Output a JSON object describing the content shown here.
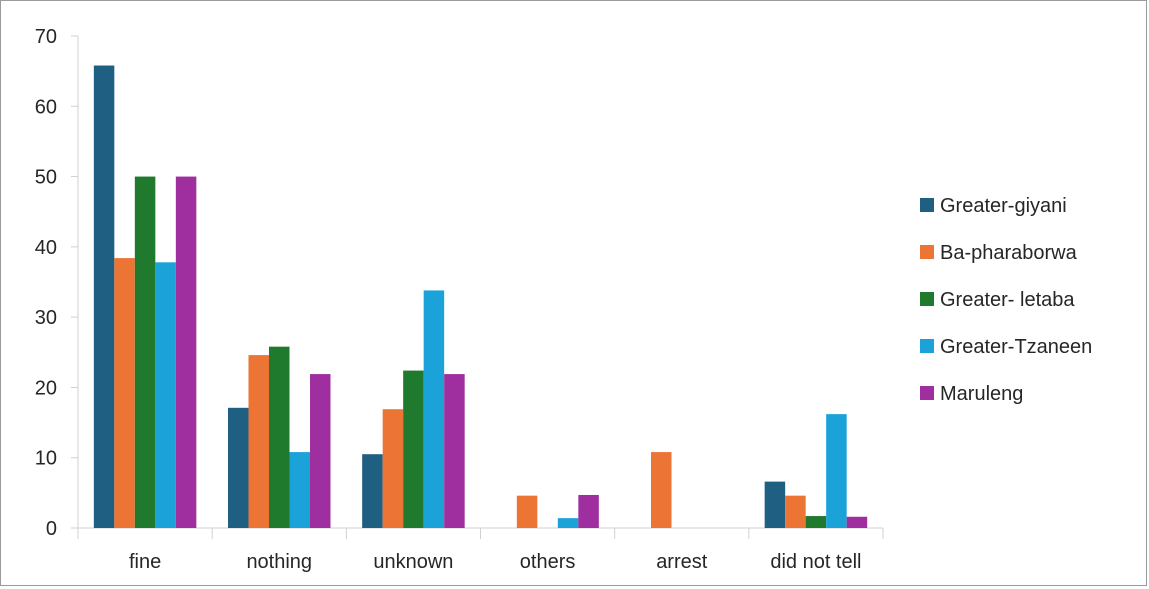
{
  "chart_data": {
    "type": "bar",
    "title": "",
    "xlabel": "",
    "ylabel": "",
    "ylim": [
      0,
      70
    ],
    "yticks": [
      0,
      10,
      20,
      30,
      40,
      50,
      60,
      70
    ],
    "grid": false,
    "legend_position": "right",
    "categories": [
      "fine",
      "nothing",
      "unknown",
      "others",
      "arrest",
      "did not tell"
    ],
    "series": [
      {
        "name": "Greater-giyani",
        "color": "#1f5f82",
        "values": [
          65.8,
          17.1,
          10.5,
          null,
          null,
          6.6
        ]
      },
      {
        "name": "Ba-pharaborwa",
        "color": "#ec7435",
        "values": [
          38.4,
          24.6,
          16.9,
          4.6,
          10.8,
          4.6
        ]
      },
      {
        "name": "Greater- letaba",
        "color": "#1f7a2e",
        "values": [
          50.0,
          25.8,
          22.4,
          null,
          null,
          1.7
        ]
      },
      {
        "name": "Greater-Tzaneen",
        "color": "#1aa2d9",
        "values": [
          37.8,
          10.8,
          33.8,
          1.4,
          null,
          16.2
        ]
      },
      {
        "name": "Maruleng",
        "color": "#9f2f9f",
        "values": [
          50.0,
          21.9,
          21.9,
          4.7,
          null,
          1.6
        ]
      }
    ]
  }
}
